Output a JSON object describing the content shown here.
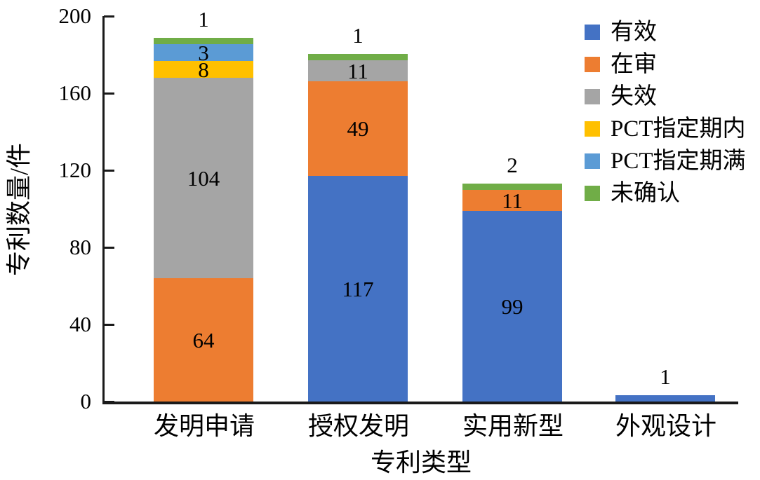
{
  "chart_data": {
    "type": "bar",
    "stacked": true,
    "title": "",
    "xlabel": "专利类型",
    "ylabel": "专利数量/件",
    "ylim": [
      0,
      200
    ],
    "yticks": [
      0,
      40,
      80,
      120,
      160,
      200
    ],
    "categories": [
      "发明申请",
      "授权发明",
      "实用新型",
      "外观设计"
    ],
    "series": [
      {
        "name": "有效",
        "color": "#4472C4",
        "values": [
          0,
          117,
          99,
          1
        ]
      },
      {
        "name": "在审",
        "color": "#ED7D31",
        "values": [
          64,
          49,
          11,
          0
        ]
      },
      {
        "name": "失效",
        "color": "#A5A5A5",
        "values": [
          104,
          11,
          0,
          0
        ]
      },
      {
        "name": "PCT指定期内",
        "color": "#FFC000",
        "values": [
          8,
          0,
          0,
          0
        ]
      },
      {
        "name": "PCT指定期满",
        "color": "#5B9BD5",
        "values": [
          3,
          0,
          0,
          0
        ]
      },
      {
        "name": "未确认",
        "color": "#70AD47",
        "values": [
          1,
          1,
          2,
          0
        ]
      }
    ],
    "top_labels": [
      "1",
      "1",
      "2",
      "1"
    ],
    "legend_position": "top-right",
    "grid": false,
    "axis_color": "#1a1a1a"
  }
}
